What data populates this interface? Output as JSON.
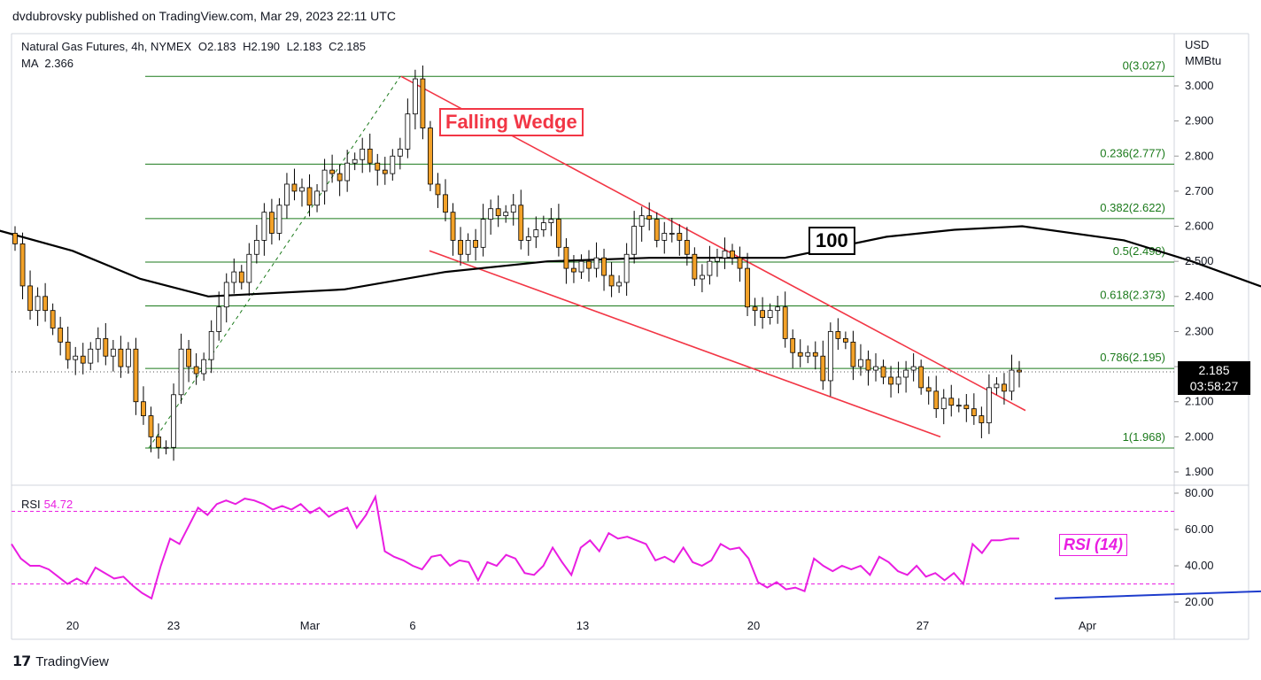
{
  "header": {
    "publisher_line": "dvdubrovsky published on TradingView.com, Mar 29, 2023 22:11 UTC"
  },
  "legend": {
    "symbol": "Natural Gas Futures, 4h, NYMEX",
    "open_label": "O",
    "open": "2.183",
    "high_label": "H",
    "high": "2.190",
    "low_label": "L",
    "low": "2.183",
    "close_label": "C",
    "close": "2.185",
    "ma_label": "MA",
    "ma": "2.366"
  },
  "axis_units": [
    "USD",
    "MMBtu"
  ],
  "price_tag": {
    "price": "2.185",
    "countdown": "03:58:27"
  },
  "annotations": {
    "wedge": "Falling Wedge",
    "ma_period": "100",
    "rsi": "RSI (14)"
  },
  "rsi_legend": {
    "label": "RSI",
    "value": "54.72"
  },
  "footer": {
    "brand": "TradingView"
  },
  "colors": {
    "up": "#ffffff",
    "down": "#f2a128",
    "wick": "#000000",
    "fib": "#1b7a1b",
    "wedge": "#f23645",
    "ma": "#000000",
    "rsi": "#e91ee1",
    "divergence": "#1e3ccc"
  },
  "chart_data": [
    {
      "type": "candlestick",
      "title": "Natural Gas Futures, 4h, NYMEX",
      "ylabel": "USD MMBtu",
      "ylim": [
        1.85,
        3.13
      ],
      "y_ticks": [
        "3.000",
        "2.900",
        "2.800",
        "2.700",
        "2.600",
        "2.500",
        "2.400",
        "2.300",
        "2.200",
        "2.100",
        "2.000",
        "1.900"
      ],
      "x_ticks": [
        "20",
        "23",
        "Mar",
        "6",
        "13",
        "20",
        "27",
        "Apr"
      ],
      "fib_levels": [
        {
          "label": "0(3.027)",
          "value": 3.027
        },
        {
          "label": "0.236(2.777)",
          "value": 2.777
        },
        {
          "label": "0.382(2.622)",
          "value": 2.622
        },
        {
          "label": "0.5(2.498)",
          "value": 2.498
        },
        {
          "label": "0.618(2.373)",
          "value": 2.373
        },
        {
          "label": "0.786(2.195)",
          "value": 2.195
        },
        {
          "label": "1(1.968)",
          "value": 1.968
        }
      ],
      "last_price": 2.185,
      "candle_closes": [
        2.55,
        2.43,
        2.36,
        2.4,
        2.36,
        2.31,
        2.27,
        2.22,
        2.23,
        2.21,
        2.25,
        2.28,
        2.23,
        2.25,
        2.2,
        2.25,
        2.1,
        2.06,
        2.0,
        1.97,
        1.97,
        2.12,
        2.25,
        2.2,
        2.18,
        2.22,
        2.3,
        2.37,
        2.44,
        2.47,
        2.44,
        2.52,
        2.56,
        2.64,
        2.58,
        2.66,
        2.72,
        2.7,
        2.71,
        2.66,
        2.7,
        2.76,
        2.75,
        2.73,
        2.78,
        2.79,
        2.82,
        2.78,
        2.76,
        2.75,
        2.8,
        2.82,
        2.92,
        3.02,
        2.88,
        2.72,
        2.69,
        2.64,
        2.56,
        2.52,
        2.56,
        2.54,
        2.62,
        2.65,
        2.63,
        2.64,
        2.66,
        2.56,
        2.57,
        2.59,
        2.61,
        2.62,
        2.54,
        2.48,
        2.47,
        2.5,
        2.48,
        2.51,
        2.46,
        2.43,
        2.44,
        2.52,
        2.6,
        2.63,
        2.62,
        2.56,
        2.58,
        2.58,
        2.56,
        2.52,
        2.45,
        2.46,
        2.5,
        2.51,
        2.53,
        2.51,
        2.48,
        2.37,
        2.36,
        2.34,
        2.36,
        2.37,
        2.28,
        2.24,
        2.23,
        2.24,
        2.23,
        2.16,
        2.3,
        2.28,
        2.27,
        2.2,
        2.22,
        2.19,
        2.2,
        2.17,
        2.15,
        2.17,
        2.19,
        2.2,
        2.14,
        2.13,
        2.08,
        2.11,
        2.09,
        2.09,
        2.08,
        2.06,
        2.04,
        2.14,
        2.15,
        2.13,
        2.19,
        2.185
      ],
      "ma100": [
        {
          "t": "Feb 17",
          "y": 2.61
        },
        {
          "t": "Feb 20",
          "y": 2.53
        },
        {
          "t": "Feb 22",
          "y": 2.45
        },
        {
          "t": "Feb 24",
          "y": 2.4
        },
        {
          "t": "Feb 28",
          "y": 2.42
        },
        {
          "t": "Mar 3",
          "y": 2.47
        },
        {
          "t": "Mar 6",
          "y": 2.5
        },
        {
          "t": "Mar 9",
          "y": 2.51
        },
        {
          "t": "Mar 13",
          "y": 2.51
        },
        {
          "t": "Mar 16",
          "y": 2.57
        },
        {
          "t": "Mar 18",
          "y": 2.59
        },
        {
          "t": "Mar 20",
          "y": 2.6
        },
        {
          "t": "Mar 23",
          "y": 2.56
        },
        {
          "t": "Mar 25",
          "y": 2.5
        },
        {
          "t": "Mar 27",
          "y": 2.43
        },
        {
          "t": "Mar 29",
          "y": 2.37
        }
      ]
    },
    {
      "type": "line",
      "title": "RSI",
      "ylim": [
        15,
        85
      ],
      "y_ticks": [
        "80.00",
        "60.00",
        "40.00",
        "20.00"
      ],
      "bands": [
        70,
        30
      ],
      "series": [
        {
          "name": "RSI (14)",
          "values": [
            52,
            44,
            40,
            40,
            38,
            34,
            30,
            33,
            30,
            39,
            36,
            33,
            34,
            29,
            25,
            22,
            40,
            55,
            52,
            62,
            72,
            68,
            74,
            76,
            74,
            77,
            76,
            74,
            71,
            73,
            71,
            74,
            69,
            72,
            67,
            70,
            72,
            61,
            68,
            78,
            48,
            45,
            43,
            40,
            38,
            45,
            46,
            40,
            43,
            42,
            32,
            42,
            40,
            46,
            44,
            36,
            35,
            40,
            50,
            42,
            35,
            50,
            54,
            48,
            58,
            55,
            56,
            54,
            52,
            43,
            45,
            42,
            50,
            42,
            40,
            43,
            52,
            49,
            50,
            44,
            31,
            28,
            31,
            27,
            28,
            26,
            44,
            40,
            37,
            40,
            38,
            40,
            35,
            45,
            42,
            37,
            35,
            40,
            34,
            36,
            32,
            36,
            30,
            52,
            47,
            54,
            54,
            55,
            55
          ]
        }
      ],
      "divergence_line": {
        "from": {
          "t": "Mar 22",
          "y": 22
        },
        "to": {
          "t": "Mar 28",
          "y": 27
        }
      }
    }
  ]
}
